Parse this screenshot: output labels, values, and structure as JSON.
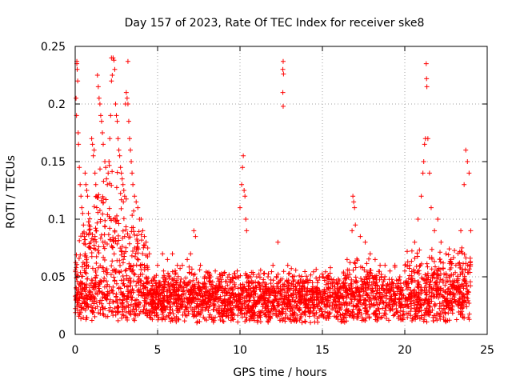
{
  "chart_data": {
    "type": "scatter",
    "title": "Day 157 of 2023, Rate Of TEC Index for receiver ske8",
    "xlabel": "GPS time / hours",
    "ylabel": "ROTI / TECUs",
    "xlim": [
      0,
      25
    ],
    "ylim": [
      0,
      0.25
    ],
    "grid": true,
    "marker": "+",
    "color": "#ff0000",
    "x_ticks": [
      {
        "value": 0,
        "label": "0"
      },
      {
        "value": 5,
        "label": "5"
      },
      {
        "value": 10,
        "label": "10"
      },
      {
        "value": 15,
        "label": "15"
      },
      {
        "value": 20,
        "label": "20"
      },
      {
        "value": 25,
        "label": "25"
      }
    ],
    "y_ticks": [
      {
        "value": 0,
        "label": "0"
      },
      {
        "value": 0.05,
        "label": "0.05"
      },
      {
        "value": 0.1,
        "label": "0.1"
      },
      {
        "value": 0.15,
        "label": "0.15"
      },
      {
        "value": 0.2,
        "label": "0.2"
      },
      {
        "value": 0.25,
        "label": "0.25"
      }
    ],
    "series": [
      {
        "name": "ROTI",
        "points": [
          [
            0.05,
            0.205
          ],
          [
            0.08,
            0.19
          ],
          [
            0.1,
            0.235
          ],
          [
            0.12,
            0.23
          ],
          [
            0.15,
            0.22
          ],
          [
            0.18,
            0.175
          ],
          [
            0.2,
            0.165
          ],
          [
            0.25,
            0.145
          ],
          [
            0.3,
            0.13
          ],
          [
            0.35,
            0.12
          ],
          [
            0.4,
            0.11
          ],
          [
            0.45,
            0.105
          ],
          [
            0.5,
            0.095
          ],
          [
            0.55,
            0.085
          ],
          [
            0.6,
            0.14
          ],
          [
            0.65,
            0.13
          ],
          [
            0.7,
            0.125
          ],
          [
            0.75,
            0.12
          ],
          [
            0.8,
            0.105
          ],
          [
            0.85,
            0.095
          ],
          [
            0.9,
            0.088
          ],
          [
            0.95,
            0.08
          ],
          [
            1.0,
            0.17
          ],
          [
            1.05,
            0.165
          ],
          [
            1.1,
            0.155
          ],
          [
            1.15,
            0.16
          ],
          [
            1.2,
            0.14
          ],
          [
            1.25,
            0.13
          ],
          [
            1.3,
            0.12
          ],
          [
            1.35,
            0.225
          ],
          [
            1.4,
            0.215
          ],
          [
            1.45,
            0.205
          ],
          [
            1.5,
            0.2
          ],
          [
            1.55,
            0.19
          ],
          [
            1.6,
            0.185
          ],
          [
            1.65,
            0.175
          ],
          [
            1.7,
            0.165
          ],
          [
            1.8,
            0.15
          ],
          [
            1.85,
            0.145
          ],
          [
            1.9,
            0.135
          ],
          [
            1.95,
            0.13
          ],
          [
            2.0,
            0.14
          ],
          [
            2.05,
            0.15
          ],
          [
            2.1,
            0.17
          ],
          [
            2.15,
            0.19
          ],
          [
            2.2,
            0.22
          ],
          [
            2.25,
            0.225
          ],
          [
            2.3,
            0.24
          ],
          [
            2.35,
            0.238
          ],
          [
            2.4,
            0.23
          ],
          [
            2.45,
            0.2
          ],
          [
            2.5,
            0.19
          ],
          [
            2.55,
            0.185
          ],
          [
            2.6,
            0.17
          ],
          [
            2.65,
            0.16
          ],
          [
            2.7,
            0.155
          ],
          [
            2.75,
            0.145
          ],
          [
            2.8,
            0.14
          ],
          [
            2.85,
            0.135
          ],
          [
            2.9,
            0.13
          ],
          [
            2.95,
            0.125
          ],
          [
            3.0,
            0.12
          ],
          [
            3.05,
            0.2
          ],
          [
            3.1,
            0.21
          ],
          [
            3.15,
            0.205
          ],
          [
            3.2,
            0.2
          ],
          [
            3.25,
            0.185
          ],
          [
            3.3,
            0.17
          ],
          [
            3.35,
            0.16
          ],
          [
            3.4,
            0.15
          ],
          [
            3.45,
            0.14
          ],
          [
            3.5,
            0.13
          ],
          [
            3.6,
            0.12
          ],
          [
            3.7,
            0.115
          ],
          [
            3.8,
            0.11
          ],
          [
            3.9,
            0.1
          ],
          [
            4.0,
            0.1
          ],
          [
            4.1,
            0.09
          ],
          [
            4.2,
            0.085
          ],
          [
            4.3,
            0.08
          ],
          [
            4.4,
            0.075
          ],
          [
            4.5,
            0.07
          ],
          [
            0.6,
            0.07
          ],
          [
            1.2,
            0.085
          ],
          [
            1.8,
            0.08
          ],
          [
            2.4,
            0.09
          ],
          [
            3.0,
            0.085
          ],
          [
            3.6,
            0.075
          ],
          [
            4.2,
            0.06
          ],
          [
            4.8,
            0.05
          ],
          [
            3.2,
            0.237
          ],
          [
            2.2,
            0.24
          ],
          [
            0.1,
            0.237
          ],
          [
            5.0,
            0.06
          ],
          [
            5.3,
            0.07
          ],
          [
            5.6,
            0.065
          ],
          [
            5.9,
            0.07
          ],
          [
            6.2,
            0.06
          ],
          [
            6.5,
            0.06
          ],
          [
            6.8,
            0.065
          ],
          [
            7.0,
            0.07
          ],
          [
            7.2,
            0.09
          ],
          [
            7.3,
            0.085
          ],
          [
            7.6,
            0.06
          ],
          [
            7.9,
            0.05
          ],
          [
            8.2,
            0.05
          ],
          [
            8.5,
            0.055
          ],
          [
            8.8,
            0.05
          ],
          [
            9.1,
            0.04
          ],
          [
            9.4,
            0.045
          ],
          [
            9.7,
            0.05
          ],
          [
            10.0,
            0.11
          ],
          [
            10.1,
            0.13
          ],
          [
            10.15,
            0.145
          ],
          [
            10.2,
            0.155
          ],
          [
            10.25,
            0.125
          ],
          [
            10.3,
            0.12
          ],
          [
            10.35,
            0.1
          ],
          [
            10.4,
            0.09
          ],
          [
            10.5,
            0.05
          ],
          [
            10.8,
            0.04
          ],
          [
            11.1,
            0.045
          ],
          [
            11.4,
            0.045
          ],
          [
            11.7,
            0.05
          ],
          [
            12.0,
            0.06
          ],
          [
            12.3,
            0.08
          ],
          [
            12.6,
            0.23
          ],
          [
            12.62,
            0.237
          ],
          [
            12.64,
            0.226
          ],
          [
            12.6,
            0.21
          ],
          [
            12.62,
            0.198
          ],
          [
            12.9,
            0.06
          ],
          [
            13.2,
            0.05
          ],
          [
            13.5,
            0.045
          ],
          [
            13.8,
            0.045
          ],
          [
            14.1,
            0.04
          ],
          [
            14.4,
            0.04
          ],
          [
            14.7,
            0.045
          ],
          [
            15.0,
            0.05
          ],
          [
            15.3,
            0.05
          ],
          [
            15.6,
            0.045
          ],
          [
            15.9,
            0.04
          ],
          [
            16.2,
            0.04
          ],
          [
            16.5,
            0.065
          ],
          [
            16.8,
            0.09
          ],
          [
            16.85,
            0.12
          ],
          [
            16.9,
            0.115
          ],
          [
            16.95,
            0.11
          ],
          [
            17.0,
            0.095
          ],
          [
            17.3,
            0.085
          ],
          [
            17.6,
            0.08
          ],
          [
            17.9,
            0.07
          ],
          [
            18.2,
            0.065
          ],
          [
            18.5,
            0.06
          ],
          [
            18.8,
            0.06
          ],
          [
            19.1,
            0.055
          ],
          [
            19.4,
            0.06
          ],
          [
            19.7,
            0.05
          ],
          [
            20.0,
            0.055
          ],
          [
            20.3,
            0.06
          ],
          [
            20.6,
            0.08
          ],
          [
            20.8,
            0.1
          ],
          [
            21.0,
            0.12
          ],
          [
            21.1,
            0.14
          ],
          [
            21.15,
            0.15
          ],
          [
            21.2,
            0.165
          ],
          [
            21.25,
            0.17
          ],
          [
            21.3,
            0.235
          ],
          [
            21.32,
            0.222
          ],
          [
            21.34,
            0.215
          ],
          [
            21.4,
            0.17
          ],
          [
            21.5,
            0.14
          ],
          [
            21.6,
            0.11
          ],
          [
            21.8,
            0.09
          ],
          [
            22.0,
            0.1
          ],
          [
            22.2,
            0.08
          ],
          [
            22.5,
            0.07
          ],
          [
            22.8,
            0.065
          ],
          [
            23.1,
            0.06
          ],
          [
            23.4,
            0.09
          ],
          [
            23.6,
            0.13
          ],
          [
            23.7,
            0.16
          ],
          [
            23.8,
            0.15
          ],
          [
            23.9,
            0.14
          ],
          [
            24.0,
            0.09
          ]
        ]
      }
    ]
  }
}
